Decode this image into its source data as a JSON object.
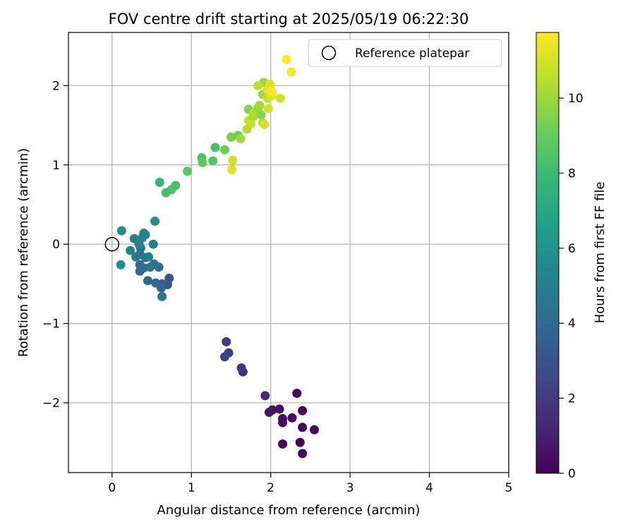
{
  "chart_data": {
    "type": "scatter",
    "title": "FOV centre drift starting at 2025/05/19 06:22:30",
    "xlabel": "Angular distance from reference (arcmin)",
    "ylabel": "Rotation from reference (arcmin)",
    "xlim": [
      -0.55,
      5.0
    ],
    "ylim": [
      -2.88,
      2.67
    ],
    "xticks": [
      0,
      1,
      2,
      3,
      4,
      5
    ],
    "xtick_labels": [
      "0",
      "1",
      "2",
      "3",
      "4",
      "5"
    ],
    "yticks": [
      -2,
      -1,
      0,
      1,
      2
    ],
    "ytick_labels": [
      "−2",
      "−1",
      "0",
      "1",
      "2"
    ],
    "grid": true,
    "legend": {
      "position": "top-right",
      "entries": [
        "Reference platepar"
      ]
    },
    "reference_point": {
      "x": 0,
      "y": 0,
      "label": "Reference platepar",
      "marker": "open-circle"
    },
    "colorbar": {
      "label": "Hours from first FF file",
      "colormap": "viridis",
      "range": [
        0,
        11.75
      ],
      "ticks": [
        0,
        2,
        4,
        6,
        8,
        10
      ],
      "tick_labels": [
        "0",
        "2",
        "4",
        "6",
        "8",
        "10"
      ]
    },
    "points": [
      {
        "x": 2.33,
        "y": -1.88,
        "c": 0.1
      },
      {
        "x": 2.4,
        "y": -2.1,
        "c": 0.2
      },
      {
        "x": 2.55,
        "y": -2.34,
        "c": 0.3
      },
      {
        "x": 2.4,
        "y": -2.31,
        "c": 0.2
      },
      {
        "x": 2.37,
        "y": -2.5,
        "c": 0.1
      },
      {
        "x": 2.4,
        "y": -2.64,
        "c": 0.3
      },
      {
        "x": 2.15,
        "y": -2.52,
        "c": 0.2
      },
      {
        "x": 2.27,
        "y": -2.19,
        "c": 0.3
      },
      {
        "x": 2.15,
        "y": -2.2,
        "c": 0.4
      },
      {
        "x": 2.15,
        "y": -2.25,
        "c": 0.4
      },
      {
        "x": 2.11,
        "y": -2.08,
        "c": 0.5
      },
      {
        "x": 2.02,
        "y": -2.09,
        "c": 0.5
      },
      {
        "x": 1.98,
        "y": -2.12,
        "c": 0.6
      },
      {
        "x": 1.93,
        "y": -1.91,
        "c": 1.3
      },
      {
        "x": 1.65,
        "y": -1.61,
        "c": 1.7
      },
      {
        "x": 1.63,
        "y": -1.56,
        "c": 1.8
      },
      {
        "x": 1.44,
        "y": -1.23,
        "c": 2.0
      },
      {
        "x": 1.47,
        "y": -1.37,
        "c": 2.2
      },
      {
        "x": 1.42,
        "y": -1.42,
        "c": 2.3
      },
      {
        "x": 0.72,
        "y": -0.43,
        "c": 3.0
      },
      {
        "x": 0.7,
        "y": -0.51,
        "c": 3.3
      },
      {
        "x": 0.63,
        "y": -0.5,
        "c": 3.5
      },
      {
        "x": 0.62,
        "y": -0.55,
        "c": 3.7
      },
      {
        "x": 0.55,
        "y": -0.49,
        "c": 4.0
      },
      {
        "x": 0.45,
        "y": -0.46,
        "c": 3.9
      },
      {
        "x": 0.63,
        "y": -0.66,
        "c": 4.5
      },
      {
        "x": 0.59,
        "y": -0.29,
        "c": 4.1
      },
      {
        "x": 0.53,
        "y": -0.25,
        "c": 4.3
      },
      {
        "x": 0.48,
        "y": -0.29,
        "c": 4.4
      },
      {
        "x": 0.4,
        "y": -0.3,
        "c": 4.5
      },
      {
        "x": 0.35,
        "y": -0.26,
        "c": 4.2
      },
      {
        "x": 0.35,
        "y": -0.34,
        "c": 4.0
      },
      {
        "x": 0.3,
        "y": -0.16,
        "c": 4.8
      },
      {
        "x": 0.35,
        "y": -0.13,
        "c": 4.6
      },
      {
        "x": 0.42,
        "y": -0.17,
        "c": 4.7
      },
      {
        "x": 0.46,
        "y": -0.16,
        "c": 4.9
      },
      {
        "x": 0.36,
        "y": -0.05,
        "c": 4.5
      },
      {
        "x": 0.23,
        "y": -0.08,
        "c": 5.1
      },
      {
        "x": 0.34,
        "y": 0.0,
        "c": 5.0
      },
      {
        "x": 0.28,
        "y": 0.07,
        "c": 4.9
      },
      {
        "x": 0.38,
        "y": 0.08,
        "c": 5.2
      },
      {
        "x": 0.4,
        "y": 0.14,
        "c": 5.5
      },
      {
        "x": 0.42,
        "y": 0.12,
        "c": 5.3
      },
      {
        "x": 0.52,
        "y": 0.0,
        "c": 5.0
      },
      {
        "x": 0.54,
        "y": 0.29,
        "c": 5.8
      },
      {
        "x": 0.12,
        "y": 0.17,
        "c": 5.7
      },
      {
        "x": 0.11,
        "y": -0.26,
        "c": 5.6
      },
      {
        "x": 0.6,
        "y": 0.78,
        "c": 7.8
      },
      {
        "x": 0.68,
        "y": 0.65,
        "c": 8.2
      },
      {
        "x": 0.75,
        "y": 0.69,
        "c": 8.4
      },
      {
        "x": 0.8,
        "y": 0.74,
        "c": 8.3
      },
      {
        "x": 0.95,
        "y": 0.92,
        "c": 8.7
      },
      {
        "x": 1.13,
        "y": 1.09,
        "c": 8.5
      },
      {
        "x": 1.14,
        "y": 1.03,
        "c": 8.8
      },
      {
        "x": 1.27,
        "y": 1.05,
        "c": 8.6
      },
      {
        "x": 1.3,
        "y": 1.22,
        "c": 8.3
      },
      {
        "x": 1.42,
        "y": 1.19,
        "c": 9.2
      },
      {
        "x": 1.5,
        "y": 1.35,
        "c": 9.3
      },
      {
        "x": 1.59,
        "y": 1.37,
        "c": 9.1
      },
      {
        "x": 1.62,
        "y": 1.33,
        "c": 10.0
      },
      {
        "x": 1.52,
        "y": 1.06,
        "c": 10.9
      },
      {
        "x": 1.51,
        "y": 0.94,
        "c": 11.2
      },
      {
        "x": 1.7,
        "y": 1.45,
        "c": 10.5
      },
      {
        "x": 1.75,
        "y": 1.52,
        "c": 10.6
      },
      {
        "x": 1.72,
        "y": 1.56,
        "c": 10.8
      },
      {
        "x": 1.72,
        "y": 1.7,
        "c": 9.5
      },
      {
        "x": 1.78,
        "y": 1.61,
        "c": 10.2
      },
      {
        "x": 1.79,
        "y": 1.66,
        "c": 10.4
      },
      {
        "x": 1.84,
        "y": 1.72,
        "c": 9.8
      },
      {
        "x": 1.88,
        "y": 1.63,
        "c": 9.6
      },
      {
        "x": 1.86,
        "y": 1.75,
        "c": 10.1
      },
      {
        "x": 1.9,
        "y": 1.53,
        "c": 10.3
      },
      {
        "x": 1.92,
        "y": 1.51,
        "c": 11.0
      },
      {
        "x": 1.9,
        "y": 1.89,
        "c": 10.0
      },
      {
        "x": 1.91,
        "y": 2.04,
        "c": 9.9
      },
      {
        "x": 1.84,
        "y": 2.0,
        "c": 10.6
      },
      {
        "x": 1.96,
        "y": 1.84,
        "c": 10.7
      },
      {
        "x": 1.97,
        "y": 1.71,
        "c": 11.0
      },
      {
        "x": 1.96,
        "y": 1.95,
        "c": 11.3
      },
      {
        "x": 1.99,
        "y": 1.99,
        "c": 11.5
      },
      {
        "x": 2.0,
        "y": 1.93,
        "c": 11.4
      },
      {
        "x": 2.01,
        "y": 1.87,
        "c": 11.1
      },
      {
        "x": 1.99,
        "y": 2.02,
        "c": 11.2
      },
      {
        "x": 2.02,
        "y": 1.92,
        "c": 11.6
      },
      {
        "x": 2.12,
        "y": 1.84,
        "c": 11.0
      },
      {
        "x": 2.2,
        "y": 2.33,
        "c": 11.7
      },
      {
        "x": 2.26,
        "y": 2.17,
        "c": 11.6
      }
    ]
  }
}
